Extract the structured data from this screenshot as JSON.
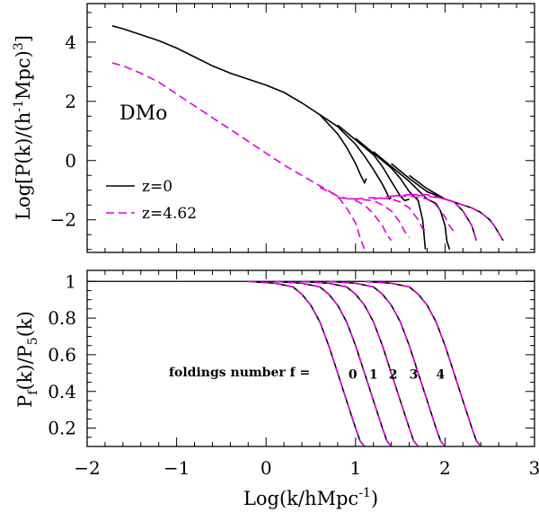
{
  "chart_data": [
    {
      "type": "line",
      "panel": "top",
      "ylabel_parts": [
        "Log[P(k)/(h",
        "-1",
        "Mpc)",
        "3",
        "]"
      ],
      "xlim": [
        -2,
        3
      ],
      "ylim": [
        -3.1,
        5.3
      ],
      "yticks_major": [
        -2,
        0,
        2,
        4
      ],
      "yticks_labels": [
        "−2",
        "0",
        "2",
        "4"
      ],
      "annotation": "DMo",
      "legend": [
        {
          "label": "z=0",
          "style": "solid",
          "color": "#000000"
        },
        {
          "label": "z=4.62",
          "style": "dashed",
          "color": "#e000e0"
        }
      ],
      "series": [
        {
          "name": "z=0 f=0",
          "style": "solid",
          "x": [
            -1.72,
            -1.6,
            -1.4,
            -1.2,
            -1,
            -0.8,
            -0.6,
            -0.4,
            -0.2,
            0,
            0.2,
            0.4,
            0.6,
            0.8,
            0.9,
            1.0,
            1.05,
            1.1,
            1.12
          ],
          "y": [
            4.55,
            4.45,
            4.25,
            4.05,
            3.8,
            3.5,
            3.2,
            2.95,
            2.75,
            2.55,
            2.3,
            1.95,
            1.55,
            0.9,
            0.45,
            -0.1,
            -0.45,
            -0.75,
            -0.6
          ]
        },
        {
          "name": "z=0 f=1",
          "style": "solid",
          "x": [
            0.6,
            0.8,
            1.0,
            1.1,
            1.2,
            1.3,
            1.35,
            1.38,
            1.4
          ],
          "y": [
            1.55,
            1.15,
            0.55,
            0.15,
            -0.3,
            -0.8,
            -1.1,
            -1.3,
            -1.25
          ]
        },
        {
          "name": "z=0 f=2",
          "style": "solid",
          "x": [
            0.8,
            1.0,
            1.2,
            1.3,
            1.4,
            1.5,
            1.55,
            1.6
          ],
          "y": [
            1.2,
            0.7,
            0.2,
            -0.2,
            -0.7,
            -1.2,
            -1.35,
            -1.3
          ]
        },
        {
          "name": "z=0 f=3",
          "style": "solid",
          "x": [
            1.0,
            1.2,
            1.4,
            1.5,
            1.6,
            1.7,
            1.75,
            1.78
          ],
          "y": [
            0.75,
            0.25,
            -0.25,
            -0.6,
            -1.05,
            -1.35,
            -2.0,
            -3.0
          ]
        },
        {
          "name": "z=0 f=4",
          "style": "solid",
          "x": [
            1.2,
            1.4,
            1.6,
            1.7,
            1.8,
            1.9,
            1.95,
            2.0,
            2.02,
            2.05
          ],
          "y": [
            0.3,
            -0.2,
            -0.7,
            -1.0,
            -1.3,
            -1.45,
            -1.7,
            -2.2,
            -2.7,
            -3.0
          ]
        },
        {
          "name": "z=0 f=5",
          "style": "solid",
          "x": [
            1.4,
            1.6,
            1.8,
            2.0,
            2.1,
            2.2,
            2.3,
            2.35
          ],
          "y": [
            -0.1,
            -0.6,
            -1.05,
            -1.3,
            -1.4,
            -1.7,
            -2.2,
            -2.7
          ]
        },
        {
          "name": "z=0 f=6",
          "style": "solid",
          "x": [
            1.6,
            1.8,
            2.0,
            2.2,
            2.3,
            2.4,
            2.5,
            2.55,
            2.6,
            2.65
          ],
          "y": [
            -0.5,
            -0.95,
            -1.3,
            -1.5,
            -1.6,
            -1.75,
            -2.0,
            -2.2,
            -2.45,
            -2.7
          ]
        },
        {
          "name": "z=4.62 f=0",
          "style": "dashed",
          "x": [
            -1.72,
            -1.6,
            -1.4,
            -1.2,
            -1,
            -0.8,
            -0.6,
            -0.4,
            -0.2,
            0,
            0.2,
            0.4,
            0.6,
            0.8,
            0.9,
            1.0,
            1.05,
            1.1,
            1.12
          ],
          "y": [
            3.3,
            3.2,
            2.95,
            2.65,
            2.25,
            1.85,
            1.45,
            1.05,
            0.65,
            0.25,
            -0.15,
            -0.5,
            -0.85,
            -1.2,
            -1.6,
            -2.1,
            -2.6,
            -3.0,
            -3.0
          ]
        },
        {
          "name": "z=4.62 f=1",
          "style": "dashed",
          "x": [
            0.6,
            0.8,
            1.0,
            1.1,
            1.2,
            1.3,
            1.35,
            1.4
          ],
          "y": [
            -0.9,
            -1.2,
            -1.35,
            -1.5,
            -1.8,
            -2.2,
            -2.5,
            -2.7
          ]
        },
        {
          "name": "z=4.62 f=2",
          "style": "dashed",
          "x": [
            0.8,
            1.0,
            1.2,
            1.3,
            1.4,
            1.5,
            1.55,
            1.6
          ],
          "y": [
            -1.25,
            -1.3,
            -1.35,
            -1.5,
            -1.7,
            -2.1,
            -2.4,
            -2.6
          ]
        },
        {
          "name": "z=4.62 f=3",
          "style": "dashed",
          "x": [
            1.0,
            1.2,
            1.4,
            1.5,
            1.6,
            1.7,
            1.75,
            1.8
          ],
          "y": [
            -1.3,
            -1.25,
            -1.3,
            -1.4,
            -1.6,
            -2.0,
            -2.3,
            -2.4
          ]
        },
        {
          "name": "z=4.62 f=4",
          "style": "dashed",
          "x": [
            1.2,
            1.4,
            1.6,
            1.8,
            1.9,
            2.0,
            2.05,
            2.1
          ],
          "y": [
            -1.3,
            -1.2,
            -1.2,
            -1.3,
            -1.5,
            -1.9,
            -2.2,
            -2.4
          ]
        },
        {
          "name": "z=4.62 f=5",
          "style": "dashed",
          "x": [
            1.4,
            1.6,
            1.8,
            2.0,
            2.1,
            2.2,
            2.3,
            2.35
          ],
          "y": [
            -1.2,
            -1.15,
            -1.2,
            -1.3,
            -1.4,
            -1.7,
            -2.2,
            -2.7
          ]
        },
        {
          "name": "z=4.62 f=6",
          "style": "dashed",
          "x": [
            1.6,
            1.8,
            2.0,
            2.2,
            2.3,
            2.4,
            2.5,
            2.55,
            2.6,
            2.65
          ],
          "y": [
            -1.15,
            -1.15,
            -1.3,
            -1.5,
            -1.6,
            -1.75,
            -2.0,
            -2.2,
            -2.45,
            -2.7
          ]
        }
      ]
    },
    {
      "type": "line",
      "panel": "bottom",
      "ylabel_parts": [
        "P",
        "f",
        "(k)/P",
        "5",
        "(k)"
      ],
      "xlabel_parts": [
        "Log(k/hMpc",
        "-1",
        ")"
      ],
      "xlim": [
        -2,
        3
      ],
      "ylim": [
        0.1,
        1.06
      ],
      "xticks_major": [
        -2,
        -1,
        0,
        1,
        2,
        3
      ],
      "xticks_labels": [
        "−2",
        "−1",
        "0",
        "1",
        "2",
        "3"
      ],
      "yticks_major": [
        0.2,
        0.4,
        0.6,
        0.8,
        1.0
      ],
      "yticks_labels": [
        "0.2",
        "0.4",
        "0.6",
        "0.8",
        "1"
      ],
      "reference_line": 1.0,
      "annotation_prefix": "foldings number  f  =",
      "fold_labels": [
        {
          "text": "0",
          "x": 0.97,
          "y": 0.5
        },
        {
          "text": "1",
          "x": 1.2,
          "y": 0.5
        },
        {
          "text": "2",
          "x": 1.42,
          "y": 0.5
        },
        {
          "text": "3",
          "x": 1.65,
          "y": 0.5
        },
        {
          "text": "4",
          "x": 1.95,
          "y": 0.5
        }
      ],
      "series": [
        {
          "name": "f=0",
          "offset": 0.0
        },
        {
          "name": "f=1",
          "offset": 0.3
        },
        {
          "name": "f=2",
          "offset": 0.6
        },
        {
          "name": "f=3",
          "offset": 0.9
        },
        {
          "name": "f=4",
          "offset": 1.3
        }
      ],
      "ratio_curve": {
        "x": [
          -0.2,
          0.1,
          0.3,
          0.4,
          0.5,
          0.6,
          0.7,
          0.8,
          0.9,
          1.0,
          1.05,
          1.1
        ],
        "y": [
          1.0,
          0.99,
          0.97,
          0.93,
          0.87,
          0.78,
          0.65,
          0.5,
          0.35,
          0.2,
          0.13,
          0.1
        ]
      }
    }
  ]
}
